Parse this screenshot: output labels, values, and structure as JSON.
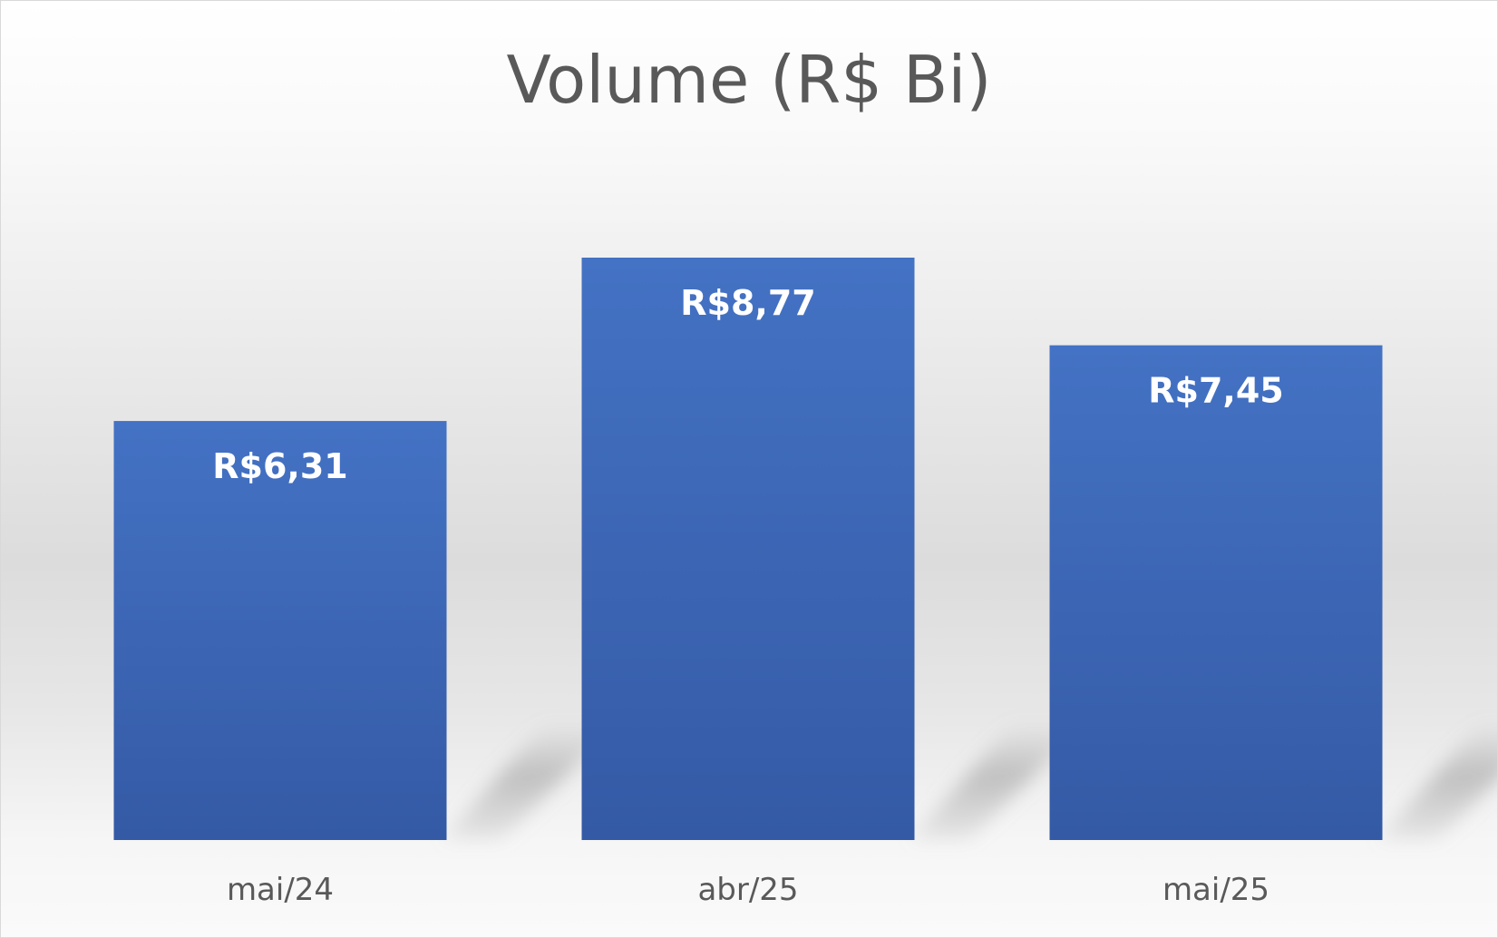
{
  "chart_data": {
    "type": "bar",
    "title": "Volume (R$ Bi)",
    "xlabel": "",
    "ylabel": "",
    "categories": [
      "mai/24",
      "abr/25",
      "mai/25"
    ],
    "values": [
      6.31,
      8.77,
      7.45
    ],
    "value_labels": [
      "R$6,31",
      "R$8,77",
      "R$7,45"
    ],
    "ylim": [
      0,
      10
    ],
    "grid": false,
    "legend": "none",
    "bar_color_top": "#4472c4",
    "bar_color_bottom": "#345aa5",
    "label_color": "#ffffff",
    "axis_text_color": "#595959"
  }
}
